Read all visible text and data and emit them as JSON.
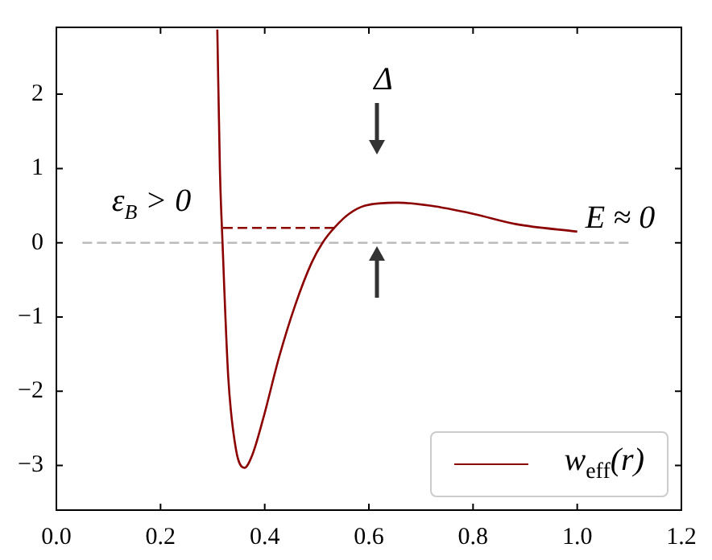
{
  "chart_data": {
    "type": "line",
    "xlim": [
      0,
      1.2
    ],
    "ylim": [
      -3.6,
      2.9
    ],
    "xticks": [
      {
        "value": 0,
        "label": "0.0"
      },
      0.2,
      0.4,
      0.6,
      0.8,
      {
        "value": 1,
        "label": "1.0"
      },
      1.2
    ],
    "yticks": [
      {
        "value": -3,
        "label": "−3"
      },
      {
        "value": -2,
        "label": "−2"
      },
      {
        "value": -1,
        "label": "−1"
      },
      0,
      1,
      2
    ],
    "grid": false,
    "legend": "bottom right",
    "marker": "none",
    "series": [
      {
        "name": "w$_{eff}$(r)",
        "color": "#8b0000",
        "line_style": "solid",
        "x": [
          0.309,
          0.314,
          0.319,
          0.33,
          0.345,
          0.361,
          0.376,
          0.397,
          0.428,
          0.459,
          0.49,
          0.511,
          0.536,
          0.562,
          0.593,
          0.655,
          0.717,
          0.8,
          0.883,
          1.0
        ],
        "values": [
          2.87,
          0.98,
          0,
          -1.81,
          -2.79,
          -3.03,
          -2.86,
          -2.37,
          -1.53,
          -0.83,
          -0.27,
          0,
          0.22,
          0.39,
          0.5,
          0.54,
          0.5,
          0.39,
          0.25,
          0.15
        ]
      },
      {
        "color": "#8b0000",
        "line_style": "dashed",
        "x": [
          0.32,
          0.535
        ],
        "values": [
          0.2,
          0.2
        ]
      },
      {
        "color": "#bbbbbb",
        "line_style": "dashed",
        "x": [
          0.05,
          1.1
        ],
        "values": [
          0,
          0
        ]
      }
    ],
    "annotations": [
      "Δ",
      "ε$_{B}$ > 0",
      "E ≈ 0"
    ]
  }
}
